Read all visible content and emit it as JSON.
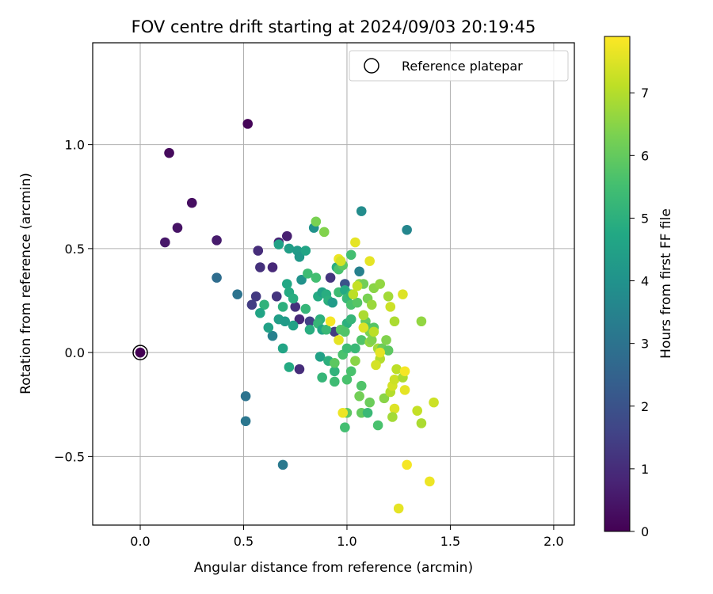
{
  "chart_data": {
    "type": "scatter",
    "title": "FOV centre drift starting at 2024/09/03 20:19:45",
    "xlabel": "Angular distance from reference (arcmin)",
    "ylabel": "Rotation from reference (arcmin)",
    "xlim": [
      -0.23,
      2.1
    ],
    "ylim": [
      -0.83,
      1.49
    ],
    "x_ticks": [
      0.0,
      0.5,
      1.0,
      1.5,
      2.0
    ],
    "x_tick_labels": [
      "0.0",
      "0.5",
      "1.0",
      "1.5",
      "2.0"
    ],
    "y_ticks": [
      -0.5,
      0.0,
      0.5,
      1.0
    ],
    "y_tick_labels": [
      "−0.5",
      "0.0",
      "0.5",
      "1.0"
    ],
    "grid": true,
    "legend": {
      "placement": "top-right",
      "entries": [
        "Reference platepar"
      ]
    },
    "reference_point": {
      "x": 0.0,
      "y": 0.0
    },
    "colorbar": {
      "label": "Hours from first FF file",
      "range": [
        0,
        7.9
      ],
      "ticks": [
        0,
        1,
        2,
        3,
        4,
        5,
        6,
        7
      ],
      "tick_labels": [
        "0",
        "1",
        "2",
        "3",
        "4",
        "5",
        "6",
        "7"
      ],
      "colormap": "viridis"
    },
    "points": [
      {
        "x": 0.0,
        "y": 0.0,
        "c": 0.0
      },
      {
        "x": 0.52,
        "y": 1.1,
        "c": 0.1
      },
      {
        "x": 0.14,
        "y": 0.96,
        "c": 0.2
      },
      {
        "x": 0.25,
        "y": 0.72,
        "c": 0.3
      },
      {
        "x": 0.18,
        "y": 0.6,
        "c": 0.4
      },
      {
        "x": 0.12,
        "y": 0.53,
        "c": 0.5
      },
      {
        "x": 0.37,
        "y": 0.54,
        "c": 0.6
      },
      {
        "x": 0.71,
        "y": 0.56,
        "c": 0.7
      },
      {
        "x": 0.67,
        "y": 0.53,
        "c": 0.8
      },
      {
        "x": 0.57,
        "y": 0.49,
        "c": 1.0
      },
      {
        "x": 0.58,
        "y": 0.41,
        "c": 1.1
      },
      {
        "x": 0.64,
        "y": 0.41,
        "c": 0.9
      },
      {
        "x": 0.66,
        "y": 0.27,
        "c": 1.2
      },
      {
        "x": 0.56,
        "y": 0.27,
        "c": 1.3
      },
      {
        "x": 0.54,
        "y": 0.23,
        "c": 1.4
      },
      {
        "x": 0.75,
        "y": 0.22,
        "c": 1.1
      },
      {
        "x": 0.77,
        "y": 0.16,
        "c": 0.9
      },
      {
        "x": 0.77,
        "y": -0.08,
        "c": 1.0
      },
      {
        "x": 0.92,
        "y": 0.36,
        "c": 1.2
      },
      {
        "x": 0.82,
        "y": 0.15,
        "c": 1.5
      },
      {
        "x": 0.94,
        "y": 0.1,
        "c": 1.4
      },
      {
        "x": 0.99,
        "y": 0.33,
        "c": 2.0
      },
      {
        "x": 0.37,
        "y": 0.36,
        "c": 2.8
      },
      {
        "x": 0.47,
        "y": 0.28,
        "c": 3.0
      },
      {
        "x": 0.51,
        "y": -0.21,
        "c": 3.0
      },
      {
        "x": 0.51,
        "y": -0.33,
        "c": 3.1
      },
      {
        "x": 0.69,
        "y": -0.54,
        "c": 3.2
      },
      {
        "x": 1.07,
        "y": 0.68,
        "c": 3.8
      },
      {
        "x": 1.29,
        "y": 0.59,
        "c": 3.6
      },
      {
        "x": 1.06,
        "y": 0.39,
        "c": 3.4
      },
      {
        "x": 0.64,
        "y": 0.08,
        "c": 3.4
      },
      {
        "x": 0.84,
        "y": 0.6,
        "c": 4.0
      },
      {
        "x": 0.67,
        "y": 0.52,
        "c": 4.5
      },
      {
        "x": 0.72,
        "y": 0.5,
        "c": 4.4
      },
      {
        "x": 0.76,
        "y": 0.49,
        "c": 4.3
      },
      {
        "x": 0.77,
        "y": 0.46,
        "c": 4.2
      },
      {
        "x": 0.8,
        "y": 0.49,
        "c": 4.6
      },
      {
        "x": 0.78,
        "y": 0.35,
        "c": 4.0
      },
      {
        "x": 0.71,
        "y": 0.33,
        "c": 4.7
      },
      {
        "x": 0.72,
        "y": 0.29,
        "c": 4.8
      },
      {
        "x": 0.74,
        "y": 0.26,
        "c": 4.9
      },
      {
        "x": 0.69,
        "y": 0.22,
        "c": 5.0
      },
      {
        "x": 0.6,
        "y": 0.23,
        "c": 5.1
      },
      {
        "x": 0.58,
        "y": 0.19,
        "c": 4.6
      },
      {
        "x": 0.67,
        "y": 0.16,
        "c": 4.4
      },
      {
        "x": 0.7,
        "y": 0.15,
        "c": 4.3
      },
      {
        "x": 0.74,
        "y": 0.13,
        "c": 4.5
      },
      {
        "x": 0.62,
        "y": 0.12,
        "c": 4.5
      },
      {
        "x": 0.69,
        "y": 0.02,
        "c": 4.6
      },
      {
        "x": 0.72,
        "y": -0.07,
        "c": 4.8
      },
      {
        "x": 0.8,
        "y": 0.21,
        "c": 5.2
      },
      {
        "x": 0.81,
        "y": 0.38,
        "c": 5.4
      },
      {
        "x": 0.85,
        "y": 0.36,
        "c": 5.5
      },
      {
        "x": 0.86,
        "y": 0.27,
        "c": 4.8
      },
      {
        "x": 0.88,
        "y": 0.29,
        "c": 4.5
      },
      {
        "x": 0.9,
        "y": 0.28,
        "c": 4.9
      },
      {
        "x": 0.87,
        "y": 0.16,
        "c": 5.0
      },
      {
        "x": 0.86,
        "y": 0.14,
        "c": 5.2
      },
      {
        "x": 0.82,
        "y": 0.11,
        "c": 4.9
      },
      {
        "x": 0.88,
        "y": 0.11,
        "c": 4.6
      },
      {
        "x": 0.9,
        "y": 0.11,
        "c": 5.3
      },
      {
        "x": 0.91,
        "y": 0.25,
        "c": 5.0
      },
      {
        "x": 0.93,
        "y": 0.24,
        "c": 4.3
      },
      {
        "x": 0.95,
        "y": 0.41,
        "c": 4.9
      },
      {
        "x": 0.96,
        "y": 0.4,
        "c": 5.6
      },
      {
        "x": 0.98,
        "y": 0.42,
        "c": 5.9
      },
      {
        "x": 0.96,
        "y": 0.29,
        "c": 5.4
      },
      {
        "x": 0.99,
        "y": 0.3,
        "c": 4.8
      },
      {
        "x": 1.0,
        "y": 0.26,
        "c": 5.3
      },
      {
        "x": 1.02,
        "y": 0.23,
        "c": 5.6
      },
      {
        "x": 1.02,
        "y": 0.28,
        "c": 5.1
      },
      {
        "x": 1.0,
        "y": 0.14,
        "c": 5.0
      },
      {
        "x": 0.97,
        "y": 0.11,
        "c": 5.8
      },
      {
        "x": 1.02,
        "y": 0.16,
        "c": 5.2
      },
      {
        "x": 0.99,
        "y": 0.1,
        "c": 5.7
      },
      {
        "x": 0.87,
        "y": -0.02,
        "c": 4.5
      },
      {
        "x": 0.91,
        "y": -0.04,
        "c": 5.0
      },
      {
        "x": 0.88,
        "y": -0.12,
        "c": 5.2
      },
      {
        "x": 0.94,
        "y": -0.09,
        "c": 5.1
      },
      {
        "x": 0.94,
        "y": -0.05,
        "c": 5.9
      },
      {
        "x": 0.98,
        "y": -0.01,
        "c": 5.6
      },
      {
        "x": 1.0,
        "y": 0.02,
        "c": 5.4
      },
      {
        "x": 0.94,
        "y": -0.14,
        "c": 5.4
      },
      {
        "x": 1.0,
        "y": -0.13,
        "c": 5.6
      },
      {
        "x": 0.99,
        "y": -0.36,
        "c": 5.5
      },
      {
        "x": 1.0,
        "y": -0.29,
        "c": 5.9
      },
      {
        "x": 1.02,
        "y": -0.09,
        "c": 5.6
      },
      {
        "x": 1.04,
        "y": 0.02,
        "c": 5.3
      },
      {
        "x": 1.07,
        "y": -0.16,
        "c": 5.7
      },
      {
        "x": 1.06,
        "y": -0.21,
        "c": 6.2
      },
      {
        "x": 1.07,
        "y": -0.29,
        "c": 6.0
      },
      {
        "x": 1.1,
        "y": -0.29,
        "c": 5.3
      },
      {
        "x": 1.11,
        "y": -0.24,
        "c": 6.1
      },
      {
        "x": 1.15,
        "y": -0.35,
        "c": 5.6
      },
      {
        "x": 1.07,
        "y": 0.06,
        "c": 5.7
      },
      {
        "x": 1.09,
        "y": 0.15,
        "c": 6.0
      },
      {
        "x": 1.1,
        "y": 0.12,
        "c": 5.7
      },
      {
        "x": 1.11,
        "y": 0.1,
        "c": 6.3
      },
      {
        "x": 1.13,
        "y": 0.12,
        "c": 5.8
      },
      {
        "x": 1.11,
        "y": 0.05,
        "c": 6.6
      },
      {
        "x": 1.12,
        "y": 0.06,
        "c": 6.4
      },
      {
        "x": 1.15,
        "y": 0.02,
        "c": 6.8
      },
      {
        "x": 1.17,
        "y": 0.02,
        "c": 6.1
      },
      {
        "x": 1.19,
        "y": 0.06,
        "c": 6.4
      },
      {
        "x": 1.2,
        "y": 0.01,
        "c": 5.9
      },
      {
        "x": 1.16,
        "y": -0.03,
        "c": 7.0
      },
      {
        "x": 1.14,
        "y": -0.06,
        "c": 7.4
      },
      {
        "x": 1.04,
        "y": -0.04,
        "c": 6.5
      },
      {
        "x": 1.05,
        "y": 0.24,
        "c": 5.8
      },
      {
        "x": 1.06,
        "y": 0.33,
        "c": 6.6
      },
      {
        "x": 1.08,
        "y": 0.33,
        "c": 6.2
      },
      {
        "x": 1.1,
        "y": 0.26,
        "c": 6.3
      },
      {
        "x": 1.12,
        "y": 0.23,
        "c": 6.7
      },
      {
        "x": 1.13,
        "y": 0.31,
        "c": 6.5
      },
      {
        "x": 1.16,
        "y": 0.33,
        "c": 6.6
      },
      {
        "x": 1.2,
        "y": 0.27,
        "c": 6.8
      },
      {
        "x": 1.21,
        "y": 0.22,
        "c": 7.3
      },
      {
        "x": 1.27,
        "y": 0.28,
        "c": 7.5
      },
      {
        "x": 1.04,
        "y": 0.53,
        "c": 7.6
      },
      {
        "x": 1.11,
        "y": 0.44,
        "c": 7.6
      },
      {
        "x": 0.96,
        "y": 0.45,
        "c": 7.7
      },
      {
        "x": 0.97,
        "y": 0.44,
        "c": 7.4
      },
      {
        "x": 0.89,
        "y": 0.58,
        "c": 6.4
      },
      {
        "x": 0.85,
        "y": 0.63,
        "c": 6.3
      },
      {
        "x": 1.02,
        "y": 0.47,
        "c": 5.5
      },
      {
        "x": 0.92,
        "y": 0.15,
        "c": 7.8
      },
      {
        "x": 0.96,
        "y": 0.06,
        "c": 7.6
      },
      {
        "x": 1.03,
        "y": 0.28,
        "c": 7.1
      },
      {
        "x": 1.05,
        "y": 0.32,
        "c": 7.2
      },
      {
        "x": 1.08,
        "y": 0.18,
        "c": 6.9
      },
      {
        "x": 1.08,
        "y": 0.12,
        "c": 7.5
      },
      {
        "x": 1.13,
        "y": 0.1,
        "c": 7.1
      },
      {
        "x": 1.16,
        "y": 0.0,
        "c": 7.6
      },
      {
        "x": 1.23,
        "y": 0.15,
        "c": 6.9
      },
      {
        "x": 1.36,
        "y": 0.15,
        "c": 6.6
      },
      {
        "x": 1.18,
        "y": -0.22,
        "c": 6.5
      },
      {
        "x": 1.21,
        "y": -0.19,
        "c": 7.0
      },
      {
        "x": 1.22,
        "y": -0.16,
        "c": 7.4
      },
      {
        "x": 1.23,
        "y": -0.13,
        "c": 7.3
      },
      {
        "x": 1.24,
        "y": -0.08,
        "c": 7.1
      },
      {
        "x": 1.27,
        "y": -0.12,
        "c": 6.9
      },
      {
        "x": 1.28,
        "y": -0.09,
        "c": 7.8
      },
      {
        "x": 1.28,
        "y": -0.18,
        "c": 7.6
      },
      {
        "x": 1.23,
        "y": -0.27,
        "c": 7.5
      },
      {
        "x": 1.22,
        "y": -0.31,
        "c": 6.8
      },
      {
        "x": 1.34,
        "y": -0.28,
        "c": 7.2
      },
      {
        "x": 1.36,
        "y": -0.34,
        "c": 6.9
      },
      {
        "x": 1.42,
        "y": -0.24,
        "c": 7.3
      },
      {
        "x": 0.98,
        "y": -0.29,
        "c": 7.7
      },
      {
        "x": 1.29,
        "y": -0.54,
        "c": 7.8
      },
      {
        "x": 1.4,
        "y": -0.62,
        "c": 7.7
      },
      {
        "x": 1.25,
        "y": -0.75,
        "c": 7.6
      }
    ]
  }
}
